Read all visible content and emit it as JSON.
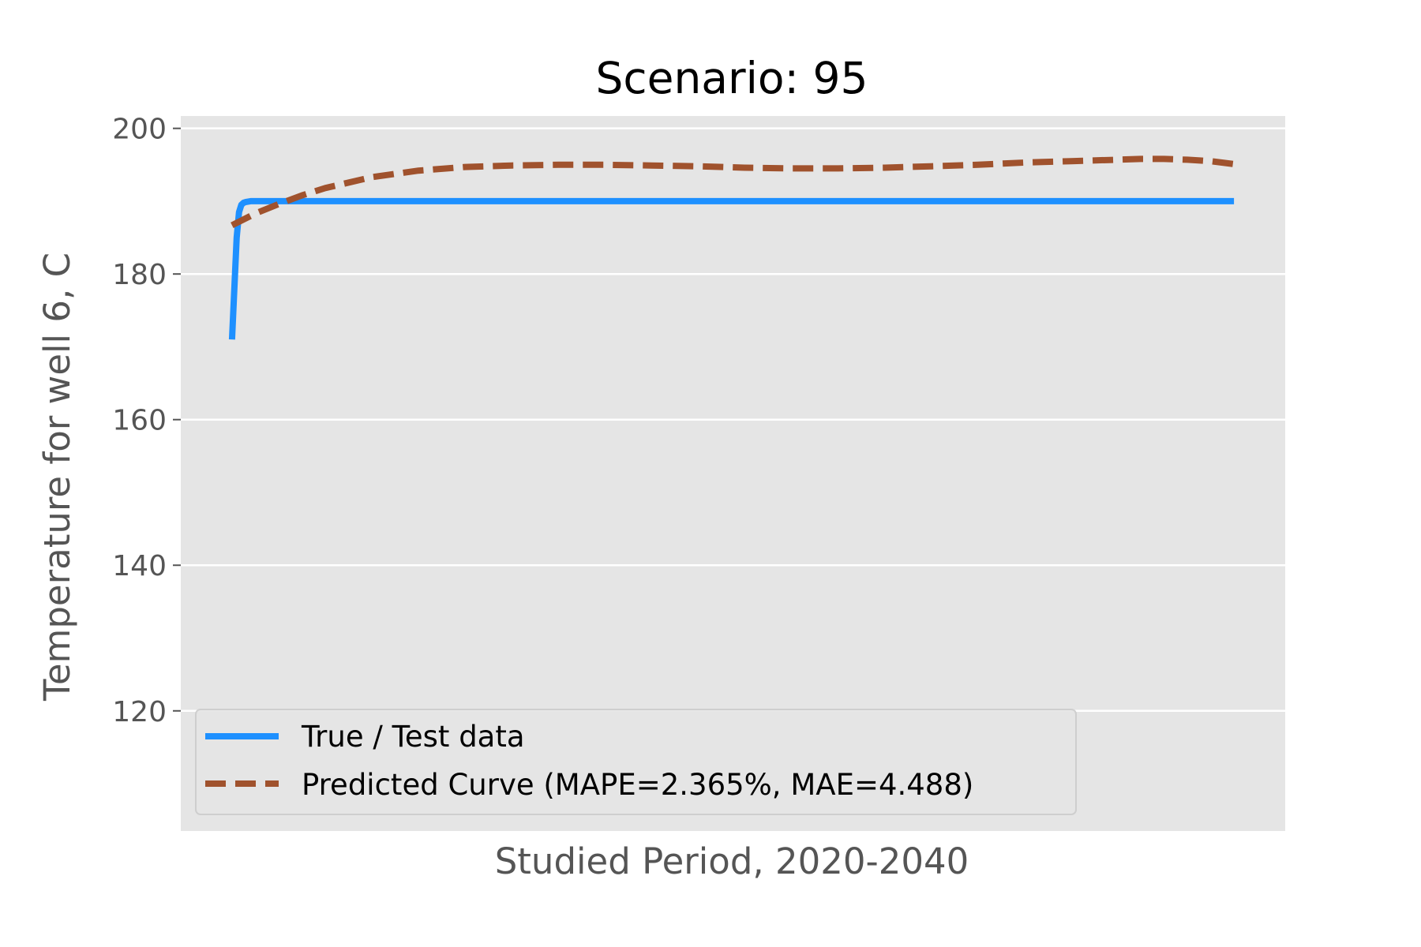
{
  "chart_data": {
    "type": "line",
    "title": "Scenario: 95",
    "xlabel": "Studied Period, 2020-2040",
    "ylabel": "Temperature for well 6, C",
    "xlim": [
      -1.1,
      22.6
    ],
    "ylim": [
      103.5,
      201.7
    ],
    "yticks": [
      120,
      140,
      160,
      180,
      200
    ],
    "yticks_labels": [
      "120",
      "140",
      "160",
      "180",
      "200"
    ],
    "xticks_visible": false,
    "grid": true,
    "legend_position": "lower-left",
    "colors": {
      "plot_background": "#e5e5e5",
      "grid": "#ffffff",
      "true_series": "#1e90ff",
      "predicted_series": "#a0522d"
    },
    "series": [
      {
        "name": "True / Test data",
        "style": "solid",
        "x": [
          0,
          0.1,
          0.15,
          0.2,
          0.25,
          0.3,
          0.4,
          0.5,
          0.6,
          0.7,
          0.9,
          1,
          2,
          4,
          6,
          8,
          10,
          12,
          14,
          16,
          18,
          20,
          21.5
        ],
        "y": [
          171,
          185,
          188.5,
          189.5,
          189.8,
          189.9,
          190,
          190,
          190,
          190,
          190,
          190,
          190,
          190,
          190,
          190,
          190,
          190,
          190,
          190,
          190,
          190,
          190
        ]
      },
      {
        "name": "Predicted Curve (MAPE=2.365%, MAE=4.488)",
        "style": "dashed",
        "x": [
          0,
          0.5,
          1,
          1.5,
          2,
          3,
          4,
          5,
          6,
          7,
          8,
          9,
          10,
          11,
          12,
          13,
          14,
          15,
          16,
          17,
          18,
          19,
          19.5,
          20,
          20.5,
          21,
          21.5
        ],
        "y": [
          186.7,
          188.3,
          189.6,
          190.8,
          191.8,
          193.3,
          194.2,
          194.7,
          194.9,
          195,
          195,
          194.9,
          194.8,
          194.6,
          194.5,
          194.5,
          194.6,
          194.8,
          195,
          195.3,
          195.5,
          195.7,
          195.8,
          195.8,
          195.7,
          195.5,
          195.1
        ]
      }
    ]
  }
}
